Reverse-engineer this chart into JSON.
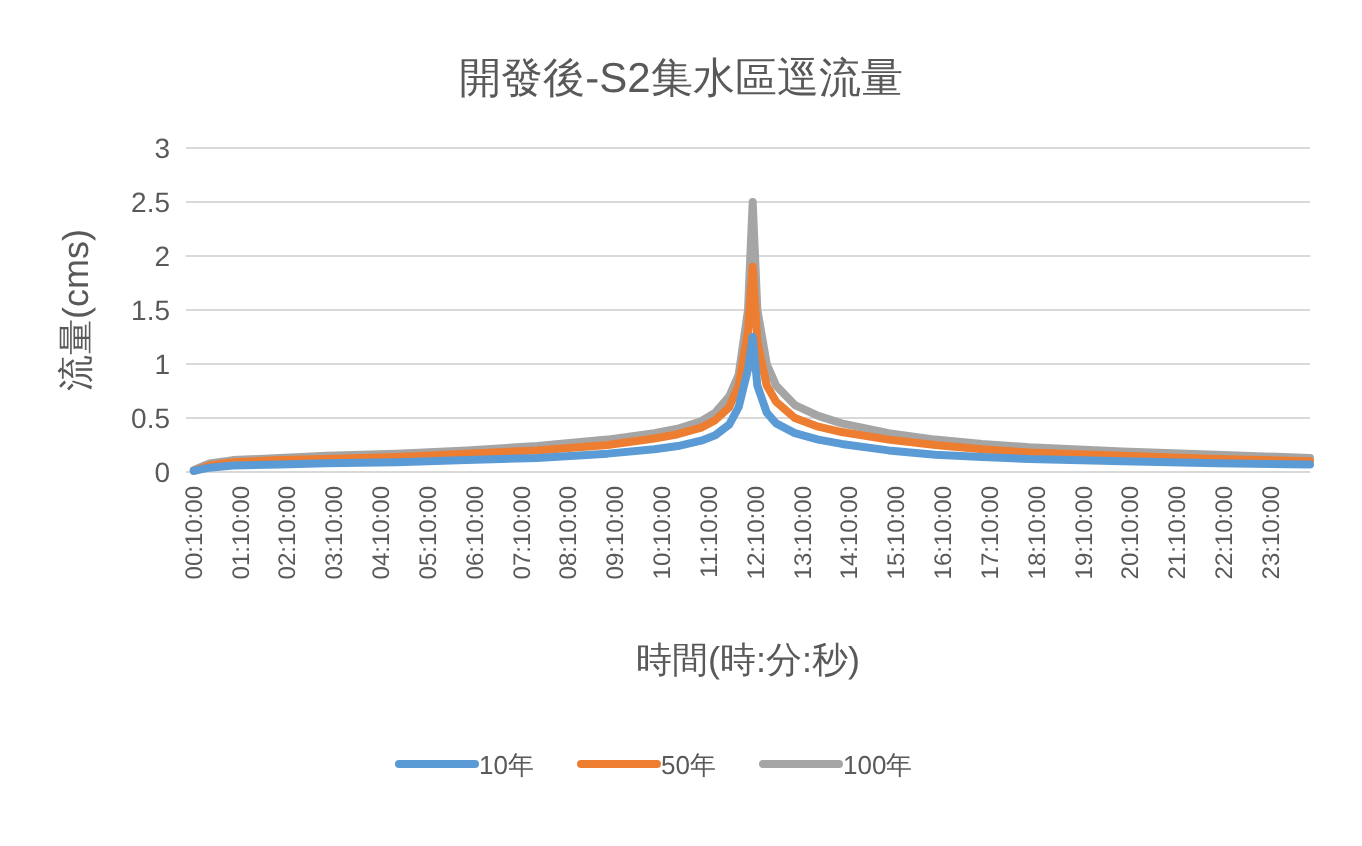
{
  "chart_data": {
    "type": "line",
    "title": "開發後-S2集水區逕流量",
    "xlabel": "時間(時:分:秒)",
    "ylabel": "流量(cms)",
    "x": [
      0.1667,
      0.5,
      1,
      2,
      3,
      4.5,
      6,
      7.5,
      9,
      10,
      10.5,
      11,
      11.3,
      11.6,
      11.8,
      12,
      12.1,
      12.2,
      12.4,
      12.6,
      13,
      13.5,
      14,
      15,
      16,
      17,
      18,
      20,
      22,
      24
    ],
    "series": [
      {
        "name": "10年",
        "color": "#5b9bd5",
        "values": [
          0.01,
          0.04,
          0.06,
          0.07,
          0.08,
          0.09,
          0.11,
          0.13,
          0.17,
          0.21,
          0.24,
          0.29,
          0.34,
          0.44,
          0.6,
          0.95,
          1.25,
          0.8,
          0.55,
          0.45,
          0.36,
          0.3,
          0.26,
          0.2,
          0.16,
          0.14,
          0.12,
          0.1,
          0.08,
          0.07
        ]
      },
      {
        "name": "50年",
        "color": "#ed7d31",
        "values": [
          0.01,
          0.06,
          0.09,
          0.11,
          0.12,
          0.14,
          0.17,
          0.2,
          0.25,
          0.31,
          0.35,
          0.41,
          0.48,
          0.6,
          0.8,
          1.3,
          1.9,
          1.2,
          0.8,
          0.65,
          0.5,
          0.42,
          0.37,
          0.3,
          0.25,
          0.21,
          0.18,
          0.15,
          0.12,
          0.1
        ]
      },
      {
        "name": "100年",
        "color": "#a5a5a5",
        "values": [
          0.02,
          0.08,
          0.11,
          0.13,
          0.15,
          0.17,
          0.2,
          0.24,
          0.3,
          0.36,
          0.4,
          0.47,
          0.55,
          0.7,
          0.9,
          1.5,
          2.5,
          1.5,
          1.0,
          0.8,
          0.62,
          0.52,
          0.45,
          0.36,
          0.3,
          0.26,
          0.23,
          0.19,
          0.16,
          0.13
        ]
      }
    ],
    "xlim": [
      0,
      24
    ],
    "xticks": [
      {
        "value": 0.1667,
        "label": "00:10:00"
      },
      {
        "value": 1.1667,
        "label": "01:10:00"
      },
      {
        "value": 2.1667,
        "label": "02:10:00"
      },
      {
        "value": 3.1667,
        "label": "03:10:00"
      },
      {
        "value": 4.1667,
        "label": "04:10:00"
      },
      {
        "value": 5.1667,
        "label": "05:10:00"
      },
      {
        "value": 6.1667,
        "label": "06:10:00"
      },
      {
        "value": 7.1667,
        "label": "07:10:00"
      },
      {
        "value": 8.1667,
        "label": "08:10:00"
      },
      {
        "value": 9.1667,
        "label": "09:10:00"
      },
      {
        "value": 10.1667,
        "label": "10:10:00"
      },
      {
        "value": 11.1667,
        "label": "11:10:00"
      },
      {
        "value": 12.1667,
        "label": "12:10:00"
      },
      {
        "value": 13.1667,
        "label": "13:10:00"
      },
      {
        "value": 14.1667,
        "label": "14:10:00"
      },
      {
        "value": 15.1667,
        "label": "15:10:00"
      },
      {
        "value": 16.1667,
        "label": "16:10:00"
      },
      {
        "value": 17.1667,
        "label": "17:10:00"
      },
      {
        "value": 18.1667,
        "label": "18:10:00"
      },
      {
        "value": 19.1667,
        "label": "19:10:00"
      },
      {
        "value": 20.1667,
        "label": "20:10:00"
      },
      {
        "value": 21.1667,
        "label": "21:10:00"
      },
      {
        "value": 22.1667,
        "label": "22:10:00"
      },
      {
        "value": 23.1667,
        "label": "23:10:00"
      }
    ],
    "ylim": [
      0,
      3
    ],
    "yticks": [
      0,
      0.5,
      1,
      1.5,
      2,
      2.5,
      3
    ],
    "grid": "y",
    "legend": "bottom",
    "marker": "none",
    "line_style": "solid"
  }
}
